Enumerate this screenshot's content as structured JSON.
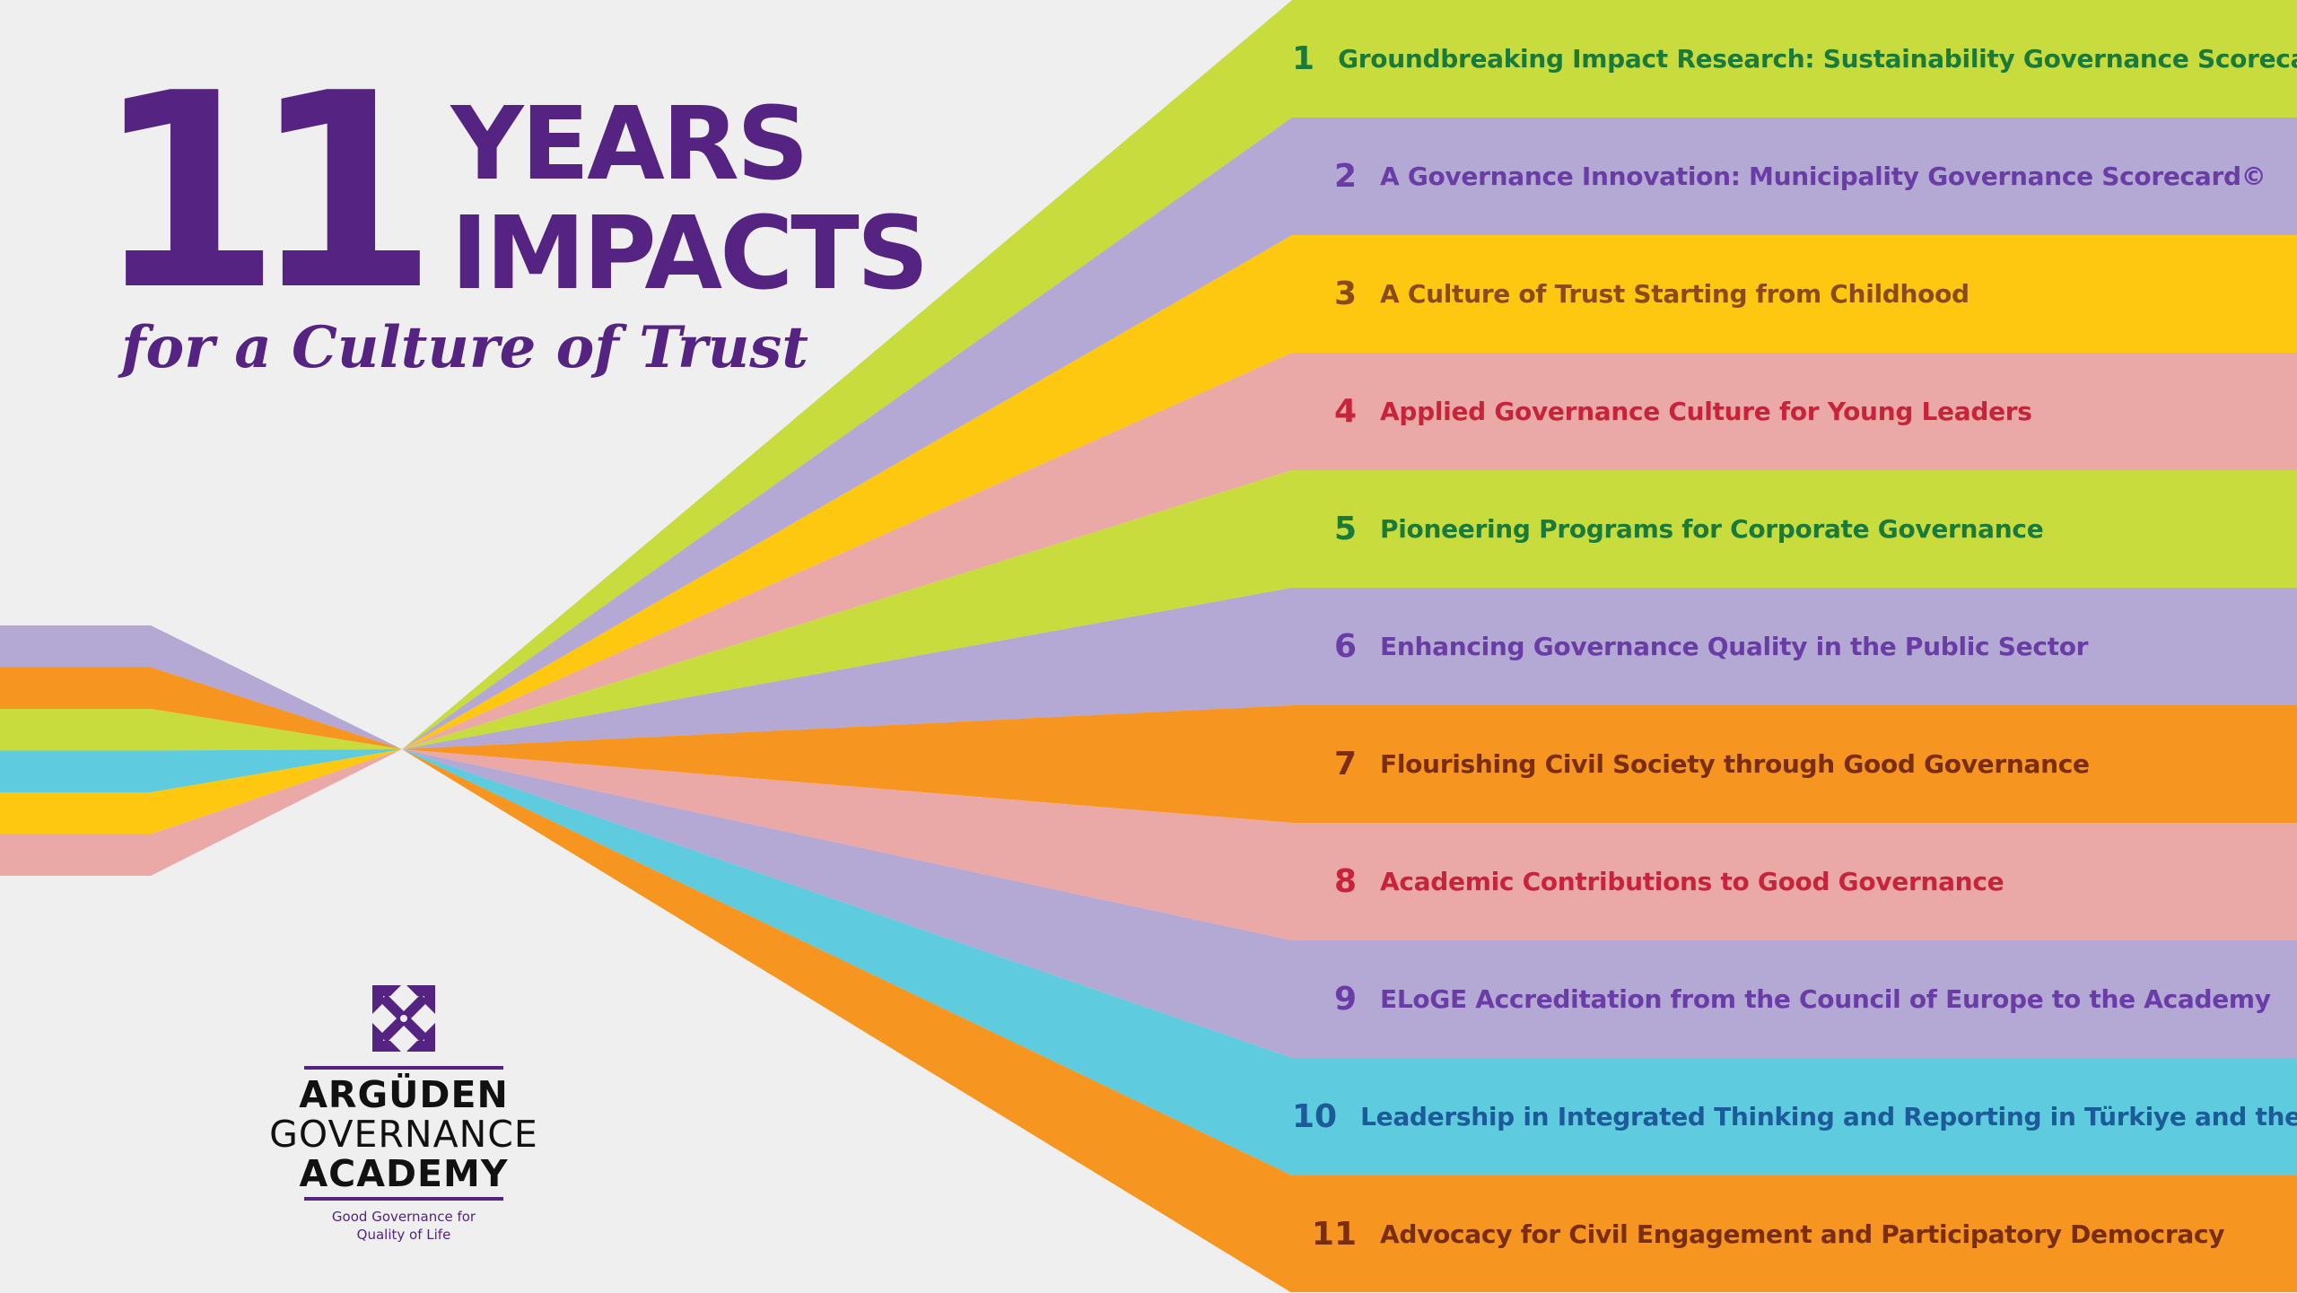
{
  "headline": {
    "number": "11",
    "line1": "YEARS",
    "line2": "IMPACTS",
    "tagline": "for a Culture of Trust"
  },
  "colors": {
    "brand_purple": "#552381",
    "lime": "#c9dc3d",
    "lavender": "#b4a8d4",
    "yellow": "#fdc80f",
    "pink": "#eaa9a6",
    "orange": "#f6951f",
    "cyan": "#5ecbdf"
  },
  "impacts": [
    {
      "num": "1",
      "label": "Groundbreaking Impact Research: Sustainability Governance Scorecard©",
      "bg": "#c9dc3d",
      "fg": "#1a7a3a"
    },
    {
      "num": "2",
      "label": "A Governance Innovation: Municipality Governance Scorecard©",
      "bg": "#b4a8d4",
      "fg": "#6a3da6"
    },
    {
      "num": "3",
      "label": "A Culture of Trust Starting from Childhood",
      "bg": "#fdc80f",
      "fg": "#8a4a1a"
    },
    {
      "num": "4",
      "label": "Applied Governance Culture for Young Leaders",
      "bg": "#eaa9a6",
      "fg": "#c8233c"
    },
    {
      "num": "5",
      "label": "Pioneering Programs for Corporate Governance",
      "bg": "#c9dc3d",
      "fg": "#1a7a3a"
    },
    {
      "num": "6",
      "label": "Enhancing Governance Quality in the Public Sector",
      "bg": "#b4a8d4",
      "fg": "#6a3da6"
    },
    {
      "num": "7",
      "label": "Flourishing Civil Society through Good Governance",
      "bg": "#f6951f",
      "fg": "#7a2d10"
    },
    {
      "num": "8",
      "label": "Academic Contributions to Good Governance",
      "bg": "#eaa9a6",
      "fg": "#c8233c"
    },
    {
      "num": "9",
      "label": "ELoGE Accreditation from the Council of Europe to the Academy",
      "bg": "#b4a8d4",
      "fg": "#6a3da6"
    },
    {
      "num": "10",
      "label": "Leadership in Integrated Thinking and Reporting in Türkiye and the World",
      "bg": "#5ecbdf",
      "fg": "#1d5a9a"
    },
    {
      "num": "11",
      "label": "Advocacy for Civil Engagement and Participatory Democracy",
      "bg": "#f6951f",
      "fg": "#7a2d10"
    }
  ],
  "input_bands": [
    "#b4a8d4",
    "#f6951f",
    "#c9dc3d",
    "#5ecbdf",
    "#fdc80f",
    "#eaa9a6"
  ],
  "logo": {
    "line1": "ARGÜDEN",
    "line2": "GOVERNANCE",
    "line3": "ACADEMY",
    "slogan1": "Good Governance for",
    "slogan2": "Quality of Life"
  }
}
